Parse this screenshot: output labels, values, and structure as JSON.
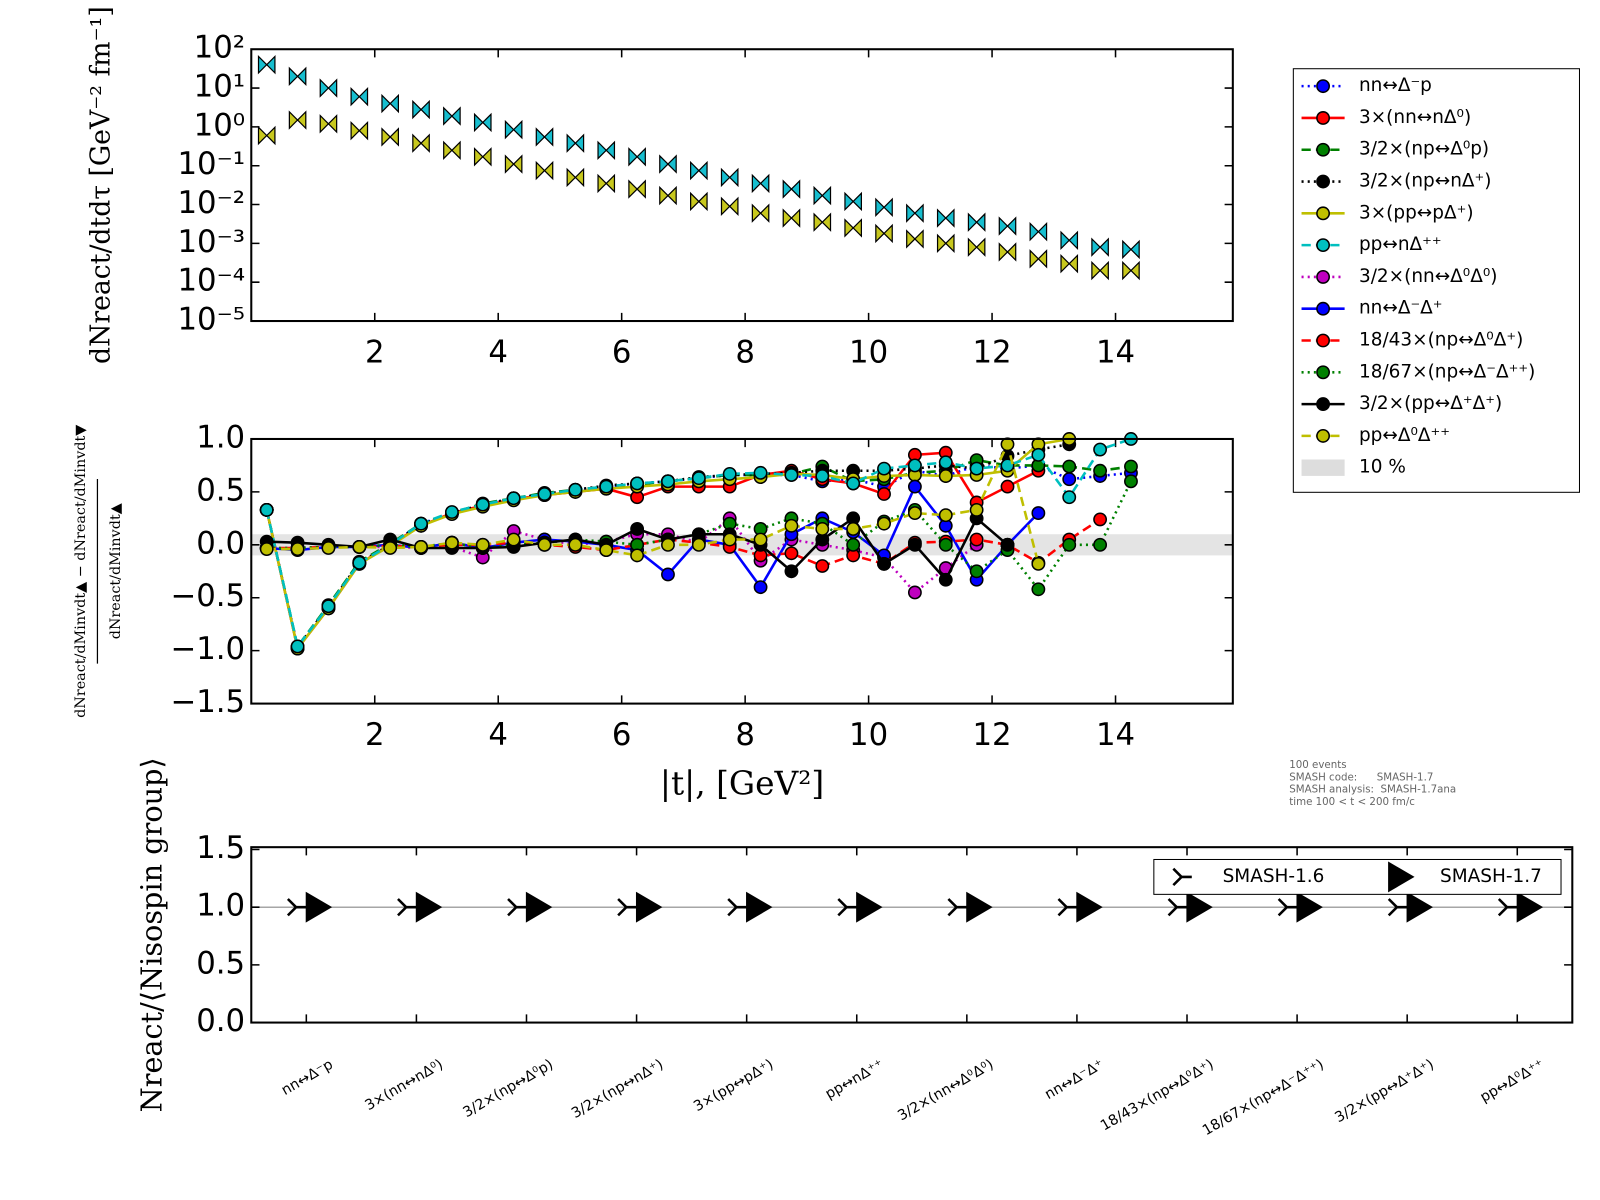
{
  "chart_data": [
    {
      "type": "scatter",
      "ylabel": "dNreact/dtdτ [GeV⁻² fm⁻¹]",
      "ylog": true,
      "xlim": [
        0,
        15.9
      ],
      "xticks": [
        2,
        4,
        6,
        8,
        10,
        12,
        14
      ],
      "ylim": [
        1e-05,
        100
      ],
      "yticks": [
        {
          "value": 100,
          "label": "10²"
        },
        {
          "value": 10,
          "label": "10¹"
        },
        {
          "value": 1,
          "label": "10⁰"
        },
        {
          "value": 0.1,
          "label": "10⁻¹"
        },
        {
          "value": 0.01,
          "label": "10⁻²"
        },
        {
          "value": 0.001,
          "label": "10⁻³"
        },
        {
          "value": 0.0001,
          "label": "10⁻⁴"
        },
        {
          "value": 1e-05,
          "label": "10⁻⁵"
        }
      ],
      "x": [
        0.25,
        0.75,
        1.25,
        1.75,
        2.25,
        2.75,
        3.25,
        3.75,
        4.25,
        4.75,
        5.25,
        5.75,
        6.25,
        6.75,
        7.25,
        7.75,
        8.25,
        8.75,
        9.25,
        9.75,
        10.25,
        10.75,
        11.25,
        11.75,
        12.25,
        12.75,
        13.25,
        13.75,
        14.25
      ],
      "series": [
        {
          "color": "#17becf",
          "marker": "bowtie",
          "values": [
            40,
            20,
            10,
            6,
            4,
            2.8,
            1.9,
            1.3,
            0.85,
            0.55,
            0.38,
            0.25,
            0.17,
            0.11,
            0.075,
            0.05,
            0.035,
            0.025,
            0.017,
            0.012,
            0.0085,
            0.006,
            0.0045,
            0.0035,
            0.0028,
            0.002,
            0.0012,
            0.0008,
            0.0007
          ]
        },
        {
          "color": "#c8c81e",
          "marker": "bowtie",
          "values": [
            0.6,
            1.5,
            1.2,
            0.8,
            0.55,
            0.38,
            0.25,
            0.17,
            0.11,
            0.075,
            0.05,
            0.035,
            0.025,
            0.017,
            0.012,
            0.009,
            0.006,
            0.0045,
            0.0035,
            0.0025,
            0.0018,
            0.0013,
            0.001,
            0.0008,
            0.0006,
            0.0004,
            0.0003,
            0.0002,
            0.0002
          ]
        }
      ]
    },
    {
      "type": "line",
      "xlabel": "|t|, [GeV²]",
      "ylabel": {
        "numerator": "dNreact/dMinvdt▲ − dNreact/dMinvdt▼",
        "denominator": "dNreact/dMinvdt▲"
      },
      "xlim": [
        0,
        15.9
      ],
      "xticks": [
        2,
        4,
        6,
        8,
        10,
        12,
        14
      ],
      "ylim": [
        -1.5,
        1.0
      ],
      "yticks": [
        {
          "value": 1.0,
          "label": "1.0"
        },
        {
          "value": 0.5,
          "label": "0.5"
        },
        {
          "value": 0,
          "label": "0.0"
        },
        {
          "value": -0.5,
          "label": "−0.5"
        },
        {
          "value": -1.0,
          "label": "−1.0"
        },
        {
          "value": -1.5,
          "label": "−1.5"
        }
      ],
      "legend": "outside right",
      "band": {
        "name": "10 %",
        "lim": [
          -0.1,
          0.1
        ],
        "color": "#dddddd"
      },
      "annotations": [
        "100 events",
        "SMASH code:      SMASH-1.7",
        "SMASH analysis:  SMASH-1.7ana",
        "time 100 < t < 200 fm/c"
      ],
      "x": [
        0.25,
        0.75,
        1.25,
        1.75,
        2.25,
        2.75,
        3.25,
        3.75,
        4.25,
        4.75,
        5.25,
        5.75,
        6.25,
        6.75,
        7.25,
        7.75,
        8.25,
        8.75,
        9.25,
        9.75,
        10.25,
        10.75,
        11.25,
        11.75,
        12.25,
        12.75,
        13.25,
        13.75,
        14.25
      ],
      "series": [
        {
          "name": "nn↔Δ⁻p",
          "color": "#0000ff",
          "dash": "dotted",
          "values": [
            0.33,
            -0.97,
            -0.58,
            -0.17,
            0.0,
            0.2,
            0.3,
            0.38,
            0.44,
            0.48,
            0.52,
            0.55,
            0.58,
            0.6,
            0.63,
            0.66,
            0.66,
            0.66,
            0.6,
            0.62,
            0.55,
            0.7,
            0.65,
            0.75,
            0.72,
            0.75,
            0.62,
            0.65,
            0.68
          ]
        },
        {
          "name": "3×(nn↔nΔ⁰)",
          "color": "#ff0000",
          "dash": "solid",
          "values": [
            0.33,
            -0.98,
            -0.6,
            -0.18,
            0.0,
            0.18,
            0.3,
            0.37,
            0.43,
            0.47,
            0.5,
            0.53,
            0.45,
            0.55,
            0.55,
            0.55,
            0.66,
            0.7,
            0.62,
            0.58,
            0.48,
            0.85,
            0.87,
            0.4,
            0.55,
            0.7,
            null,
            null,
            null
          ]
        },
        {
          "name": "3/2×(np↔Δ⁰p)",
          "color": "#008000",
          "dash": "dashed",
          "values": [
            0.33,
            -0.96,
            -0.57,
            -0.16,
            0.01,
            0.2,
            0.3,
            0.39,
            0.44,
            0.49,
            0.52,
            0.55,
            0.57,
            0.6,
            0.63,
            0.66,
            0.66,
            0.67,
            0.74,
            0.6,
            0.62,
            0.68,
            0.7,
            0.8,
            0.75,
            0.75,
            0.74,
            0.7,
            0.74
          ]
        },
        {
          "name": "3/2×(np↔nΔ⁺)",
          "color": "#000000",
          "dash": "dotted",
          "values": [
            0.33,
            -0.97,
            -0.58,
            -0.17,
            0.0,
            0.19,
            0.3,
            0.38,
            0.44,
            0.48,
            0.52,
            0.56,
            0.58,
            0.6,
            0.64,
            0.66,
            0.67,
            0.68,
            0.7,
            0.7,
            0.7,
            0.72,
            0.75,
            0.72,
            0.84,
            0.9,
            0.95,
            null,
            null
          ]
        },
        {
          "name": "3×(pp↔pΔ⁺)",
          "color": "#bfbf00",
          "dash": "solid",
          "values": [
            0.33,
            -0.98,
            -0.6,
            -0.18,
            -0.01,
            0.18,
            0.29,
            0.36,
            0.42,
            0.47,
            0.5,
            0.53,
            0.55,
            0.57,
            0.6,
            0.62,
            0.64,
            0.67,
            0.66,
            0.62,
            0.65,
            0.66,
            0.65,
            0.66,
            0.7,
            0.95,
            1.0,
            null,
            null
          ]
        },
        {
          "name": "pp↔nΔ⁺⁺",
          "color": "#00bfbf",
          "dash": "dashed",
          "values": [
            0.33,
            -0.96,
            -0.58,
            -0.17,
            0.0,
            0.2,
            0.31,
            0.38,
            0.44,
            0.48,
            0.52,
            0.55,
            0.58,
            0.6,
            0.63,
            0.67,
            0.68,
            0.66,
            0.65,
            0.58,
            0.72,
            0.75,
            0.78,
            0.72,
            0.75,
            0.85,
            0.45,
            0.9,
            1.0
          ]
        },
        {
          "name": "3/2×(nn↔Δ⁰Δ⁰)",
          "color": "#bf00bf",
          "dash": "dotted",
          "values": [
            -0.03,
            -0.03,
            -0.02,
            -0.02,
            -0.02,
            -0.03,
            -0.02,
            -0.12,
            0.13,
            0.05,
            0.0,
            0.03,
            0.1,
            0.1,
            0.02,
            0.25,
            -0.15,
            0.05,
            0.0,
            -0.05,
            -0.12,
            -0.45,
            -0.22,
            0.0,
            null,
            null,
            null,
            null,
            null
          ]
        },
        {
          "name": "nn↔Δ⁻Δ⁺",
          "color": "#0000ff",
          "dash": "solid",
          "values": [
            -0.03,
            -0.05,
            -0.02,
            -0.02,
            0.0,
            -0.03,
            0.02,
            -0.03,
            0.02,
            0.05,
            0.03,
            0.0,
            -0.05,
            -0.28,
            0.05,
            0.0,
            -0.4,
            0.1,
            0.25,
            0.12,
            -0.1,
            0.55,
            0.18,
            -0.33,
            0.0,
            0.3,
            null,
            null,
            null
          ]
        },
        {
          "name": "18/43×(np↔Δ⁰Δ⁺)",
          "color": "#ff0000",
          "dash": "dashed",
          "values": [
            -0.03,
            -0.03,
            -0.02,
            -0.02,
            -0.01,
            -0.02,
            0.0,
            0.0,
            0.02,
            0.0,
            -0.02,
            -0.05,
            0.0,
            0.05,
            0.02,
            -0.02,
            -0.1,
            -0.08,
            -0.2,
            -0.1,
            -0.18,
            0.02,
            0.03,
            0.05,
            0.0,
            -0.17,
            0.05,
            0.24,
            null
          ]
        },
        {
          "name": "18/67×(np↔Δ⁻Δ⁺⁺)",
          "color": "#008000",
          "dash": "dotted",
          "values": [
            -0.03,
            -0.03,
            -0.02,
            -0.02,
            0.0,
            -0.02,
            0.02,
            -0.03,
            0.0,
            0.02,
            0.05,
            0.03,
            0.0,
            0.05,
            0.1,
            0.2,
            0.15,
            0.25,
            0.2,
            0.0,
            0.22,
            0.33,
            0.0,
            -0.25,
            -0.05,
            -0.42,
            0.0,
            0.0,
            0.6
          ]
        },
        {
          "name": "3/2×(pp↔Δ⁺Δ⁺)",
          "color": "#000000",
          "dash": "solid",
          "values": [
            0.03,
            0.02,
            0.0,
            -0.02,
            0.05,
            -0.03,
            -0.03,
            -0.03,
            -0.02,
            0.02,
            0.05,
            0.0,
            0.15,
            0.05,
            0.1,
            0.1,
            0.0,
            -0.25,
            0.05,
            0.25,
            -0.18,
            0.0,
            -0.33,
            0.25,
            0.0,
            null,
            null,
            null,
            null
          ]
        },
        {
          "name": "pp↔Δ⁰Δ⁺⁺",
          "color": "#bfbf00",
          "dash": "dashed",
          "values": [
            -0.04,
            -0.04,
            -0.03,
            -0.02,
            -0.03,
            -0.02,
            0.02,
            0.0,
            0.05,
            0.0,
            0.0,
            -0.05,
            -0.1,
            0.0,
            0.0,
            0.05,
            0.05,
            0.18,
            0.15,
            0.15,
            0.2,
            0.3,
            0.28,
            0.33,
            0.95,
            -0.18,
            null,
            null,
            null
          ]
        }
      ]
    },
    {
      "type": "scatter",
      "ylabel": "Nreact/⟨Nisospin group⟩",
      "ylim": [
        0,
        1.52
      ],
      "yticks": [
        {
          "value": 0,
          "label": "0.0"
        },
        {
          "value": 0.5,
          "label": "0.5"
        },
        {
          "value": 1.0,
          "label": "1.0"
        },
        {
          "value": 1.5,
          "label": "1.5"
        }
      ],
      "reference_line": 1,
      "legend": "upper right",
      "categories": [
        "nn↔Δ⁻p",
        "3×(nn↔nΔ⁰)",
        "3/2×(np↔Δ⁰p)",
        "3/2×(np↔nΔ⁺)",
        "3×(pp↔pΔ⁺)",
        "pp↔nΔ⁺⁺",
        "3/2×(nn↔Δ⁰Δ⁰)",
        "nn↔Δ⁻Δ⁺",
        "18/43×(np↔Δ⁰Δ⁺)",
        "18/67×(np↔Δ⁻Δ⁺⁺)",
        "3/2×(pp↔Δ⁺Δ⁺)",
        "pp↔Δ⁰Δ⁺⁺"
      ],
      "series": [
        {
          "name": "SMASH-1.6",
          "color": "#000000",
          "marker": "tri-left",
          "values": [
            1,
            1,
            1,
            1,
            1,
            1,
            1,
            1,
            1,
            1,
            1,
            1
          ]
        },
        {
          "name": "SMASH-1.7",
          "color": "#000000",
          "marker": "triangle-right",
          "values": [
            1,
            1,
            1,
            1,
            1,
            1,
            1,
            1,
            1,
            1,
            1,
            1
          ]
        }
      ]
    }
  ]
}
